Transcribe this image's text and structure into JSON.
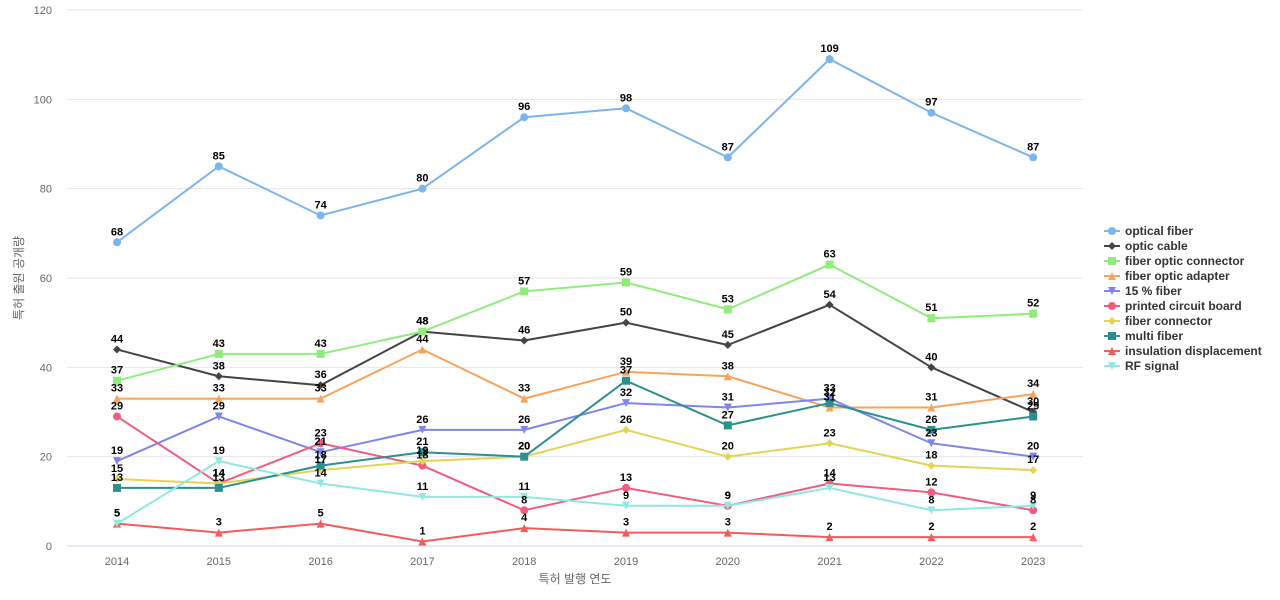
{
  "chart_data": {
    "type": "line",
    "title": "",
    "xlabel": "특허 발행 연도",
    "ylabel": "특허 출원 공개량",
    "x": [
      "2014",
      "2015",
      "2016",
      "2017",
      "2018",
      "2019",
      "2020",
      "2021",
      "2022",
      "2023"
    ],
    "ylim": [
      0,
      120
    ],
    "yticks": [
      0,
      20,
      40,
      60,
      80,
      100,
      120
    ],
    "grid": true,
    "legend_position": "right",
    "series": [
      {
        "name": "optical fiber",
        "color": "#7cb5ec",
        "marker": "circle",
        "values": [
          68,
          85,
          74,
          80,
          96,
          98,
          87,
          109,
          97,
          87
        ]
      },
      {
        "name": "optic cable",
        "color": "#434348",
        "marker": "diamond",
        "values": [
          44,
          38,
          36,
          48,
          46,
          50,
          45,
          54,
          40,
          30
        ]
      },
      {
        "name": "fiber optic connector",
        "color": "#90ed7d",
        "marker": "square",
        "values": [
          37,
          43,
          43,
          48,
          57,
          59,
          53,
          63,
          51,
          52
        ]
      },
      {
        "name": "fiber optic adapter",
        "color": "#f7a35c",
        "marker": "triangle",
        "values": [
          33,
          33,
          33,
          44,
          33,
          39,
          38,
          31,
          31,
          34
        ]
      },
      {
        "name": "15 % fiber",
        "color": "#8085e9",
        "marker": "triangle-down",
        "values": [
          19,
          29,
          21,
          26,
          26,
          32,
          31,
          33,
          23,
          20
        ]
      },
      {
        "name": "printed circuit board",
        "color": "#f15c80",
        "marker": "circle",
        "values": [
          29,
          14,
          23,
          18,
          8,
          13,
          9,
          14,
          12,
          8
        ]
      },
      {
        "name": "fiber connector",
        "color": "#e4d354",
        "marker": "diamond",
        "values": [
          15,
          14,
          17,
          19,
          20,
          26,
          20,
          23,
          18,
          17
        ]
      },
      {
        "name": "multi fiber",
        "color": "#2b908f",
        "marker": "square",
        "values": [
          13,
          13,
          18,
          21,
          20,
          37,
          27,
          32,
          26,
          29
        ]
      },
      {
        "name": "insulation displacement",
        "color": "#f45b5b",
        "marker": "triangle",
        "values": [
          5,
          3,
          5,
          1,
          4,
          3,
          3,
          2,
          2,
          2
        ]
      },
      {
        "name": "RF signal",
        "color": "#91e8e1",
        "marker": "triangle-down",
        "values": [
          5,
          19,
          14,
          11,
          11,
          9,
          9,
          13,
          8,
          9
        ]
      }
    ],
    "data_labels": {
      "optical fiber": [
        68,
        85,
        74,
        80,
        96,
        98,
        87,
        109,
        97,
        87
      ],
      "optic cable": [
        44,
        38,
        36,
        48,
        46,
        50,
        45,
        54,
        40,
        30
      ],
      "fiber optic connector": [
        37,
        43,
        43,
        48,
        57,
        59,
        53,
        63,
        51,
        52
      ],
      "fiber optic adapter": [
        33,
        33,
        33,
        44,
        33,
        39,
        38,
        31,
        31,
        34
      ],
      "15 % fiber": [
        19,
        29,
        21,
        26,
        26,
        32,
        31,
        33,
        23,
        20
      ],
      "printed circuit board": [
        29,
        14,
        23,
        18,
        8,
        13,
        9,
        14,
        12,
        8
      ],
      "fiber connector": [
        15,
        14,
        17,
        19,
        20,
        26,
        20,
        23,
        18,
        17
      ],
      "multi fiber": [
        13,
        13,
        18,
        21,
        20,
        37,
        27,
        32,
        26,
        29
      ],
      "insulation displacement": [
        5,
        3,
        5,
        1,
        4,
        3,
        3,
        2,
        2,
        2
      ],
      "RF signal": [
        5,
        19,
        14,
        11,
        11,
        9,
        9,
        13,
        8,
        9
      ]
    }
  }
}
